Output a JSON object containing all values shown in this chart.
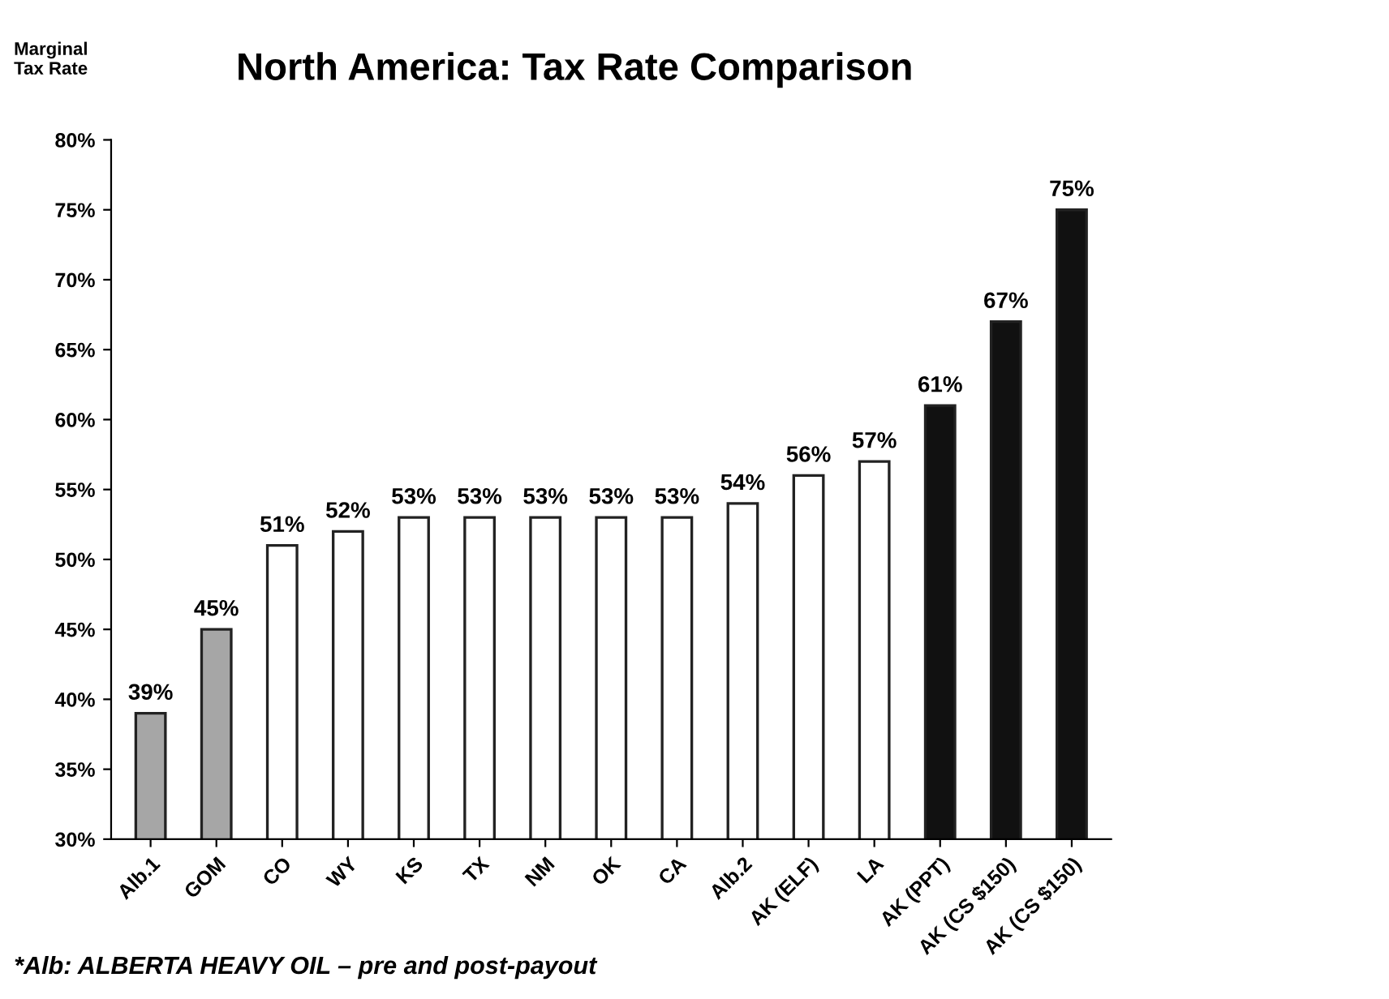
{
  "chart_data": {
    "type": "bar",
    "title": "North America: Tax Rate Comparison",
    "ylabel": "Marginal\nTax Rate",
    "categories": [
      "Alb.1",
      "GOM",
      "CO",
      "WY",
      "KS",
      "TX",
      "NM",
      "OK",
      "CA",
      "Alb.2",
      "AK (ELF)",
      "LA",
      "AK (PPT)",
      "AK (CS $150)",
      "AK (CS $150)"
    ],
    "values": [
      39,
      45,
      51,
      52,
      53,
      53,
      53,
      53,
      53,
      54,
      56,
      57,
      61,
      67,
      75
    ],
    "colors": [
      "#a6a6a6",
      "#a6a6a6",
      "#ffffff",
      "#ffffff",
      "#ffffff",
      "#ffffff",
      "#ffffff",
      "#ffffff",
      "#ffffff",
      "#ffffff",
      "#ffffff",
      "#ffffff",
      "#111111",
      "#111111",
      "#111111"
    ],
    "ylim": [
      30,
      80
    ],
    "yticks": [
      {
        "value": 30,
        "label": "30%"
      },
      {
        "value": 35,
        "label": "35%"
      },
      {
        "value": 40,
        "label": "40%"
      },
      {
        "value": 45,
        "label": "45%"
      },
      {
        "value": 50,
        "label": "50%"
      },
      {
        "value": 55,
        "label": "55%"
      },
      {
        "value": 60,
        "label": "60%"
      },
      {
        "value": 65,
        "label": "65%"
      },
      {
        "value": 70,
        "label": "70%"
      },
      {
        "value": 75,
        "label": "75%"
      },
      {
        "value": 80,
        "label": "80%"
      }
    ],
    "value_labels": [
      "39%",
      "45%",
      "51%",
      "52%",
      "53%",
      "53%",
      "53%",
      "53%",
      "53%",
      "54%",
      "56%",
      "57%",
      "61%",
      "67%",
      "75%"
    ],
    "grid": false,
    "legend": false,
    "annotations": [
      "*Alb: ALBERTA HEAVY OIL – pre and post-payout"
    ]
  }
}
